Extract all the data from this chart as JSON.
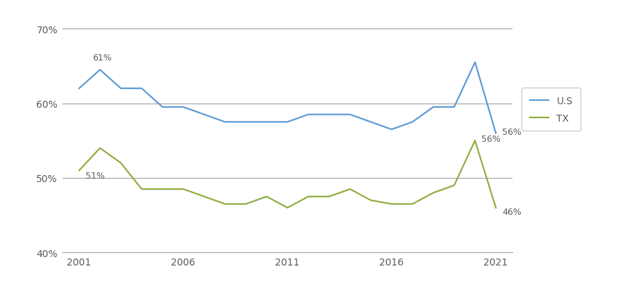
{
  "years": [
    2001,
    2002,
    2003,
    2004,
    2005,
    2006,
    2007,
    2008,
    2009,
    2010,
    2011,
    2012,
    2013,
    2014,
    2015,
    2016,
    2017,
    2018,
    2019,
    2020,
    2021
  ],
  "us_values": [
    0.62,
    0.645,
    0.62,
    0.62,
    0.595,
    0.595,
    0.585,
    0.575,
    0.575,
    0.575,
    0.575,
    0.585,
    0.585,
    0.585,
    0.575,
    0.565,
    0.575,
    0.595,
    0.595,
    0.655,
    0.56
  ],
  "tx_values": [
    0.51,
    0.54,
    0.52,
    0.485,
    0.485,
    0.485,
    0.475,
    0.465,
    0.465,
    0.475,
    0.46,
    0.475,
    0.475,
    0.485,
    0.47,
    0.465,
    0.465,
    0.48,
    0.49,
    0.55,
    0.46
  ],
  "us_color": "#5B9BD5",
  "tx_color": "#8FAD3F",
  "ylim": [
    0.4,
    0.72
  ],
  "yticks": [
    0.4,
    0.5,
    0.6,
    0.7
  ],
  "xticks": [
    2001,
    2006,
    2011,
    2016,
    2021
  ],
  "legend_us": "U.S",
  "legend_tx": "TX",
  "grid_color": "#A0A0A0",
  "background_color": "#FFFFFF",
  "font_color": "#595959",
  "annotation_fontsize": 9,
  "tick_fontsize": 10,
  "legend_fontsize": 10,
  "line_width": 1.6
}
